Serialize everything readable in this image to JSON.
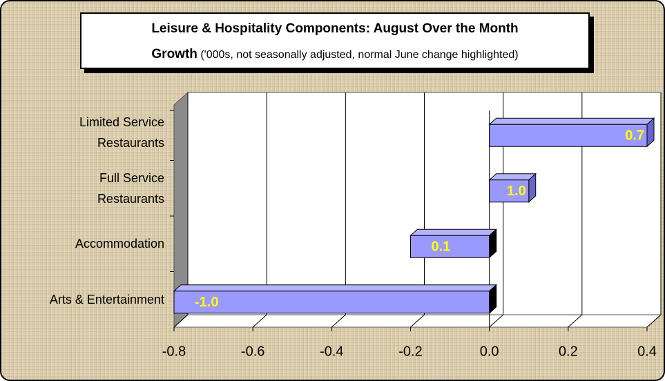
{
  "chart_data": {
    "type": "bar",
    "orientation": "horizontal",
    "title": "Leisure & Hospitality Components: August Over the Month\nGrowth",
    "subtitle": "('000s, not seasonally adjusted, normal June change highlighted)",
    "categories": [
      "Limited Service\nRestaurants",
      "Full Service\nRestaurants",
      "Accommodation",
      "Arts & Entertainment"
    ],
    "values": [
      0.4,
      0.1,
      -0.2,
      -0.8
    ],
    "bar_labels": [
      "0.7",
      "1.0",
      "0.1",
      "-1.0"
    ],
    "color": "#9999ff",
    "xlim": [
      -0.8,
      0.4
    ],
    "xticks": [
      -0.8,
      -0.6,
      -0.4,
      -0.2,
      {
        "value": 0,
        "label": "0.0"
      },
      0.2,
      0.4
    ],
    "grid": true
  }
}
